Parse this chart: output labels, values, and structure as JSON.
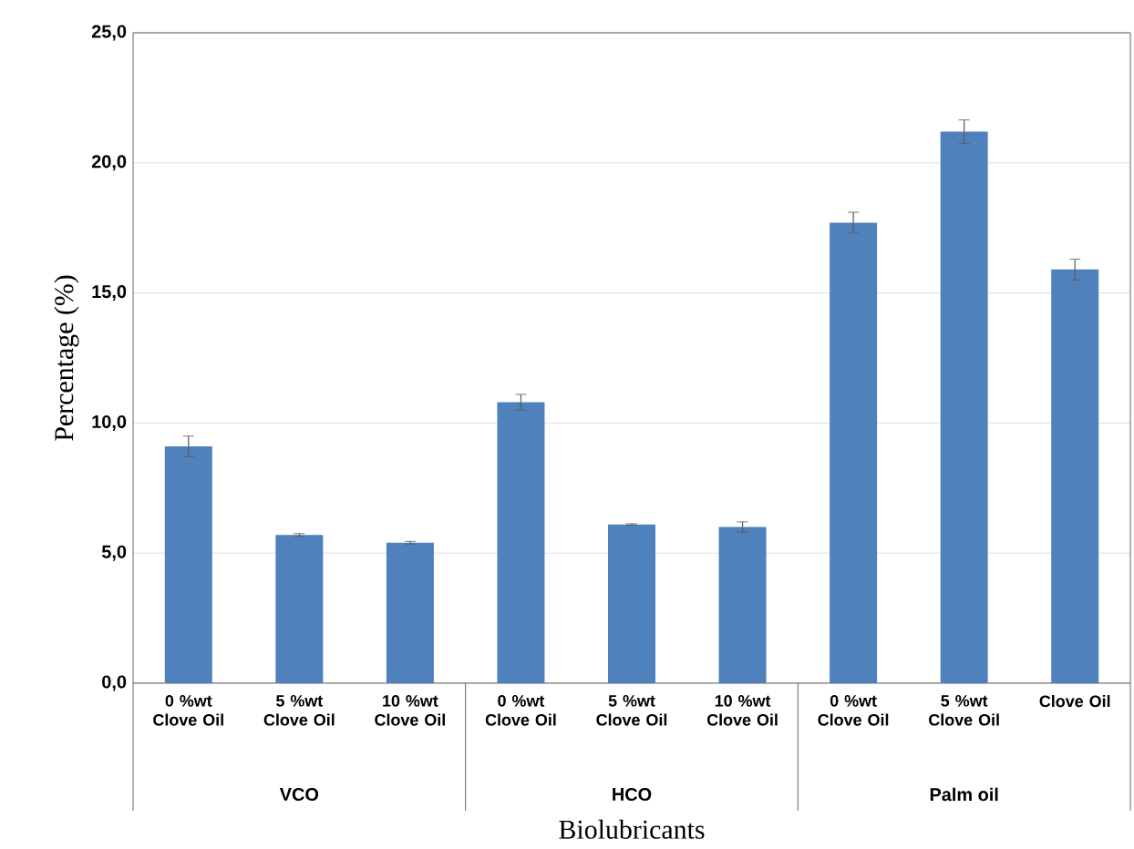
{
  "chart_data": {
    "type": "bar",
    "xlabel": "Biolubricants",
    "ylabel": "Percentage (%)",
    "categories": [
      "0 %wt Clove Oil",
      "5 %wt Clove Oil",
      "10 %wt Clove Oil",
      "0 %wt Clove Oil",
      "5 %wt Clove Oil",
      "10 %wt Clove Oil",
      "0 %wt Clove Oil",
      "5 %wt Clove Oil",
      "Clove Oil"
    ],
    "values": [
      9.1,
      5.7,
      5.4,
      10.8,
      6.1,
      6.0,
      17.7,
      21.2,
      15.9
    ],
    "errors": [
      0.4,
      0.05,
      0.05,
      0.3,
      0.03,
      0.2,
      0.4,
      0.45,
      0.4
    ],
    "color": "#4f81bd",
    "annotations": [
      "VCO",
      "HCO",
      "Palm oil"
    ],
    "ylim": [
      0,
      25
    ],
    "yticks": [
      {
        "value": 0,
        "label": "0,0"
      },
      {
        "value": 5,
        "label": "5,0"
      },
      {
        "value": 10,
        "label": "10,0"
      },
      {
        "value": 15,
        "label": "15,0"
      },
      {
        "value": 20,
        "label": "20,0"
      },
      {
        "value": 25,
        "label": "25,0"
      }
    ],
    "grid": "y"
  }
}
